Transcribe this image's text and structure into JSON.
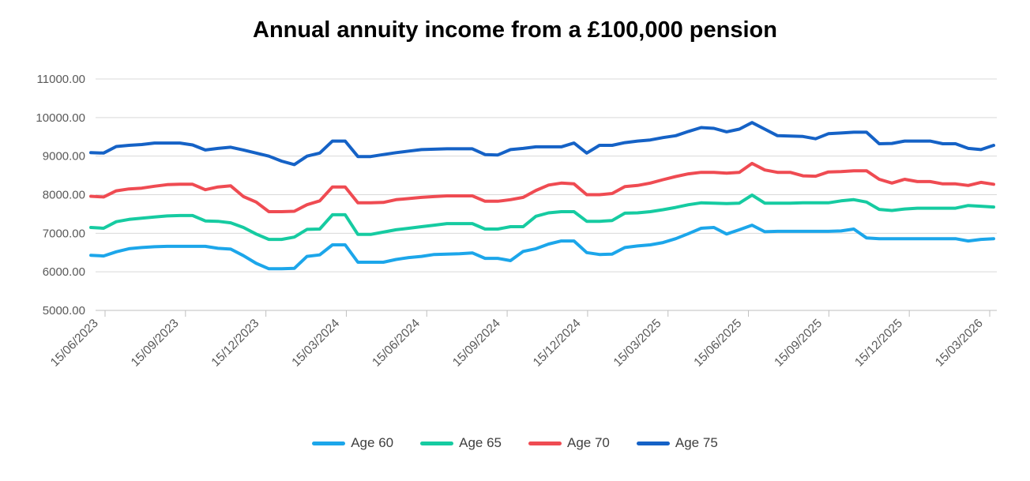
{
  "chart_data": {
    "type": "line",
    "title": "Annual annuity income from a £100,000 pension",
    "xlabel": "",
    "ylabel": "",
    "ylim": [
      5000,
      11000
    ],
    "grid": "horizontal",
    "legend_position": "bottom",
    "y_ticks": [
      11000,
      10000,
      9000,
      8000,
      7000,
      6000,
      5000
    ],
    "y_tick_labels": [
      "11000.00",
      "10000.00",
      "9000.00",
      "8000.00",
      "7000.00",
      "6000.00",
      "5000.00"
    ],
    "x_tick_labels": [
      "15/06/2023",
      "15/09/2023",
      "15/12/2023",
      "15/03/2024",
      "15/06/2024",
      "15/09/2024",
      "15/12/2024",
      "15/03/2025",
      "15/06/2025",
      "15/09/2025",
      "15/12/2025",
      "15/03/2026"
    ],
    "series": [
      {
        "name": "Age 60",
        "color": "#1CA6EA",
        "values": [
          6430,
          6410,
          6520,
          6600,
          6630,
          6650,
          6660,
          6660,
          6660,
          6660,
          6610,
          6590,
          6420,
          6220,
          6080,
          6080,
          6090,
          6400,
          6440,
          6700,
          6700,
          6250,
          6250,
          6250,
          6320,
          6370,
          6400,
          6450,
          6460,
          6470,
          6490,
          6350,
          6350,
          6290,
          6530,
          6600,
          6720,
          6800,
          6800,
          6500,
          6450,
          6460,
          6630,
          6670,
          6700,
          6760,
          6860,
          6990,
          7130,
          7150,
          6980,
          7090,
          7210,
          7040,
          7050,
          7050,
          7050,
          7050,
          7050,
          7060,
          7110,
          6880,
          6860,
          6860,
          6860,
          6860,
          6860,
          6860,
          6860,
          6800,
          6840,
          6860
        ]
      },
      {
        "name": "Age 65",
        "color": "#16CBA1",
        "values": [
          7150,
          7130,
          7300,
          7360,
          7390,
          7420,
          7450,
          7460,
          7460,
          7320,
          7310,
          7270,
          7150,
          6980,
          6840,
          6840,
          6900,
          7100,
          7110,
          7480,
          7480,
          6970,
          6970,
          7030,
          7090,
          7130,
          7170,
          7210,
          7250,
          7250,
          7250,
          7110,
          7110,
          7170,
          7170,
          7440,
          7530,
          7560,
          7560,
          7310,
          7310,
          7330,
          7520,
          7530,
          7560,
          7610,
          7670,
          7740,
          7790,
          7780,
          7770,
          7780,
          7990,
          7780,
          7780,
          7780,
          7790,
          7790,
          7790,
          7840,
          7870,
          7810,
          7620,
          7590,
          7630,
          7650,
          7650,
          7650,
          7650,
          7720,
          7700,
          7680
        ]
      },
      {
        "name": "Age 70",
        "color": "#EF4B52",
        "values": [
          7960,
          7940,
          8100,
          8150,
          8170,
          8220,
          8260,
          8270,
          8270,
          8130,
          8200,
          8230,
          7950,
          7810,
          7560,
          7560,
          7570,
          7740,
          7840,
          8200,
          8200,
          7790,
          7790,
          7800,
          7870,
          7900,
          7930,
          7950,
          7970,
          7970,
          7970,
          7830,
          7830,
          7870,
          7930,
          8110,
          8250,
          8300,
          8280,
          8000,
          8000,
          8030,
          8210,
          8240,
          8300,
          8390,
          8470,
          8540,
          8580,
          8580,
          8560,
          8580,
          8810,
          8640,
          8580,
          8580,
          8490,
          8480,
          8590,
          8600,
          8620,
          8620,
          8400,
          8300,
          8400,
          8340,
          8340,
          8280,
          8280,
          8240,
          8320,
          8270
        ]
      },
      {
        "name": "Age 75",
        "color": "#1562C6",
        "values": [
          9090,
          9080,
          9250,
          9280,
          9300,
          9340,
          9340,
          9340,
          9290,
          9160,
          9200,
          9230,
          9160,
          9080,
          9000,
          8870,
          8780,
          9000,
          9080,
          9390,
          9390,
          8990,
          8990,
          9040,
          9090,
          9130,
          9170,
          9180,
          9190,
          9190,
          9190,
          9040,
          9030,
          9170,
          9200,
          9240,
          9240,
          9240,
          9340,
          9080,
          9280,
          9280,
          9350,
          9390,
          9420,
          9480,
          9530,
          9640,
          9740,
          9720,
          9630,
          9700,
          9870,
          9700,
          9530,
          9520,
          9510,
          9450,
          9580,
          9600,
          9620,
          9620,
          9320,
          9330,
          9390,
          9390,
          9390,
          9320,
          9320,
          9200,
          9170,
          9280
        ]
      }
    ]
  },
  "colors": {
    "background": "#ffffff",
    "gridline": "#D9D9D9",
    "axis": "#BFBFBF",
    "tick_label": "#595959",
    "title": "#000000",
    "legend_text": "#3F3F3F"
  }
}
